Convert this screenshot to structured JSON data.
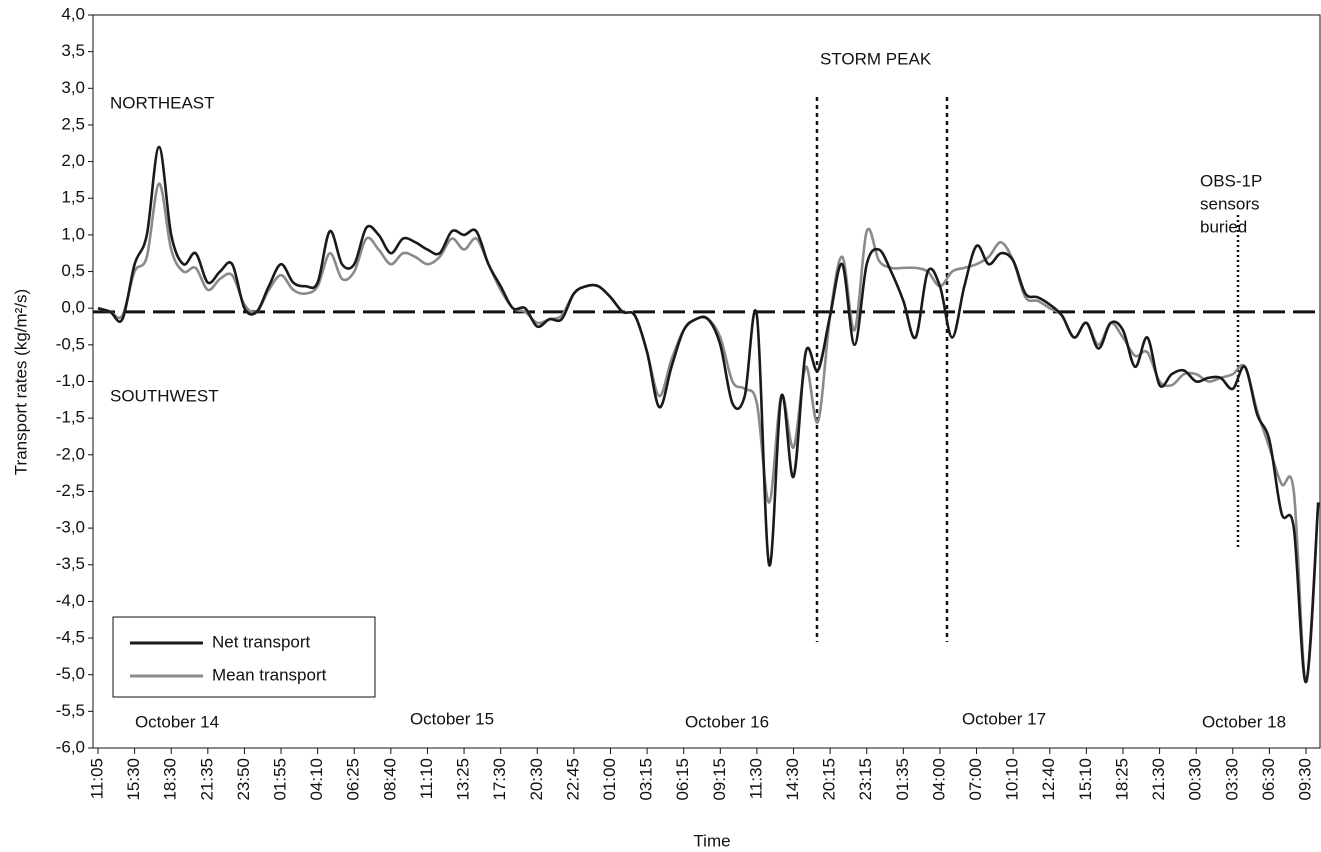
{
  "chart_data": {
    "type": "line",
    "ylabel": "Transport rates (kg/m²/s)",
    "xlabel": "Time",
    "ylim": [
      -6,
      4
    ],
    "yticks": [
      {
        "value": 4,
        "label": "4,0"
      },
      {
        "value": 3.5,
        "label": "3,5"
      },
      {
        "value": 3,
        "label": "3,0"
      },
      {
        "value": 2.5,
        "label": "2,5"
      },
      {
        "value": 2,
        "label": "2,0"
      },
      {
        "value": 1.5,
        "label": "1,5"
      },
      {
        "value": 1,
        "label": "1,0"
      },
      {
        "value": 0.5,
        "label": "0,5"
      },
      {
        "value": 0,
        "label": "0,0"
      },
      {
        "value": -0.5,
        "label": "-0,5"
      },
      {
        "value": -1,
        "label": "-1,0"
      },
      {
        "value": -1.5,
        "label": "-1,5"
      },
      {
        "value": -2,
        "label": "-2,0"
      },
      {
        "value": -2.5,
        "label": "-2,5"
      },
      {
        "value": -3,
        "label": "-3,0"
      },
      {
        "value": -3.5,
        "label": "-3,5"
      },
      {
        "value": -4,
        "label": "-4,0"
      },
      {
        "value": -4.5,
        "label": "-4,5"
      },
      {
        "value": -5,
        "label": "-5,0"
      },
      {
        "value": -5.5,
        "label": "-5,5"
      },
      {
        "value": -6,
        "label": "-6,0"
      }
    ],
    "categories": [
      "11:05",
      null,
      null,
      "15:30",
      null,
      null,
      "18:30",
      null,
      null,
      "21:35",
      null,
      null,
      "23:50",
      null,
      null,
      "01:55",
      null,
      null,
      "04:10",
      null,
      null,
      "06:25",
      null,
      null,
      "08:40",
      null,
      null,
      "11:10",
      null,
      null,
      "13:25",
      null,
      null,
      "17:30",
      null,
      null,
      "20:30",
      null,
      null,
      "22:45",
      null,
      null,
      "01:00",
      null,
      null,
      "03:15",
      null,
      null,
      "06:15",
      null,
      null,
      "09:15",
      null,
      null,
      "11:30",
      null,
      null,
      "14:30",
      null,
      null,
      "20:15",
      null,
      null,
      "23:15",
      null,
      null,
      "01:35",
      null,
      null,
      "04:00",
      null,
      null,
      "07:00",
      null,
      null,
      "10:10",
      null,
      null,
      "12:40",
      null,
      null,
      "15:10",
      null,
      null,
      "18:25",
      null,
      null,
      "21:30",
      null,
      null,
      "00:30",
      null,
      null,
      "03:30",
      null,
      null,
      "06:30",
      null,
      null,
      "09:30",
      null
    ],
    "series": [
      {
        "name": "Net transport",
        "color": "#1a1a1a",
        "values": [
          0.0,
          -0.05,
          -0.15,
          0.6,
          1.0,
          2.2,
          1.0,
          0.6,
          0.75,
          0.35,
          0.5,
          0.6,
          0.0,
          -0.05,
          0.3,
          0.6,
          0.35,
          0.3,
          0.35,
          1.05,
          0.6,
          0.6,
          1.1,
          1.0,
          0.75,
          0.95,
          0.9,
          0.8,
          0.75,
          1.05,
          1.0,
          1.05,
          0.6,
          0.3,
          0.0,
          0.0,
          -0.25,
          -0.15,
          -0.15,
          0.2,
          0.3,
          0.3,
          0.15,
          -0.05,
          -0.1,
          -0.6,
          -1.35,
          -0.8,
          -0.3,
          -0.15,
          -0.15,
          -0.5,
          -1.3,
          -1.2,
          -0.1,
          -3.5,
          -1.2,
          -2.3,
          -0.6,
          -0.85,
          -0.1,
          0.6,
          -0.5,
          0.6,
          0.8,
          0.5,
          0.1,
          -0.4,
          0.5,
          0.3,
          -0.4,
          0.3,
          0.85,
          0.6,
          0.75,
          0.65,
          0.2,
          0.15,
          0.05,
          -0.1,
          -0.4,
          -0.2,
          -0.55,
          -0.2,
          -0.3,
          -0.8,
          -0.4,
          -1.05,
          -0.9,
          -0.85,
          -1.0,
          -0.95,
          -0.95,
          -1.1,
          -0.8,
          -1.45,
          -1.8,
          -2.8,
          -3.0,
          -5.1,
          -2.65
        ]
      },
      {
        "name": "Mean transport",
        "color": "#8a8a8a",
        "values": [
          0.0,
          -0.05,
          -0.1,
          0.5,
          0.7,
          1.7,
          0.8,
          0.5,
          0.55,
          0.25,
          0.4,
          0.45,
          0.05,
          -0.05,
          0.25,
          0.45,
          0.25,
          0.2,
          0.3,
          0.75,
          0.4,
          0.5,
          0.95,
          0.8,
          0.6,
          0.75,
          0.7,
          0.6,
          0.7,
          0.95,
          0.8,
          0.95,
          0.6,
          0.25,
          0.0,
          -0.05,
          -0.2,
          -0.15,
          -0.1,
          0.2,
          0.3,
          0.3,
          0.15,
          -0.05,
          -0.1,
          -0.6,
          -1.2,
          -0.7,
          -0.3,
          -0.15,
          -0.15,
          -0.4,
          -1.0,
          -1.1,
          -1.3,
          -2.65,
          -1.2,
          -1.9,
          -0.8,
          -1.55,
          -0.1,
          0.7,
          -0.3,
          1.05,
          0.65,
          0.55,
          0.55,
          0.55,
          0.5,
          0.3,
          0.5,
          0.55,
          0.6,
          0.7,
          0.9,
          0.65,
          0.15,
          0.1,
          0.0,
          -0.1,
          -0.4,
          -0.2,
          -0.5,
          -0.2,
          -0.4,
          -0.65,
          -0.6,
          -1.0,
          -1.05,
          -0.9,
          -0.9,
          -1.0,
          -0.95,
          -0.9,
          -0.8,
          -1.4,
          -1.9,
          -2.4,
          -2.5,
          -5.1,
          -2.65
        ]
      }
    ],
    "reference_line": -0.05,
    "annotations": [
      "NORTHEAST",
      "SOUTHWEST",
      "STORM PEAK",
      "OBS-1P",
      "sensors",
      "buried"
    ],
    "date_labels": [
      "October 14",
      "October 15",
      "October 16",
      "October 17",
      "October 18"
    ]
  }
}
